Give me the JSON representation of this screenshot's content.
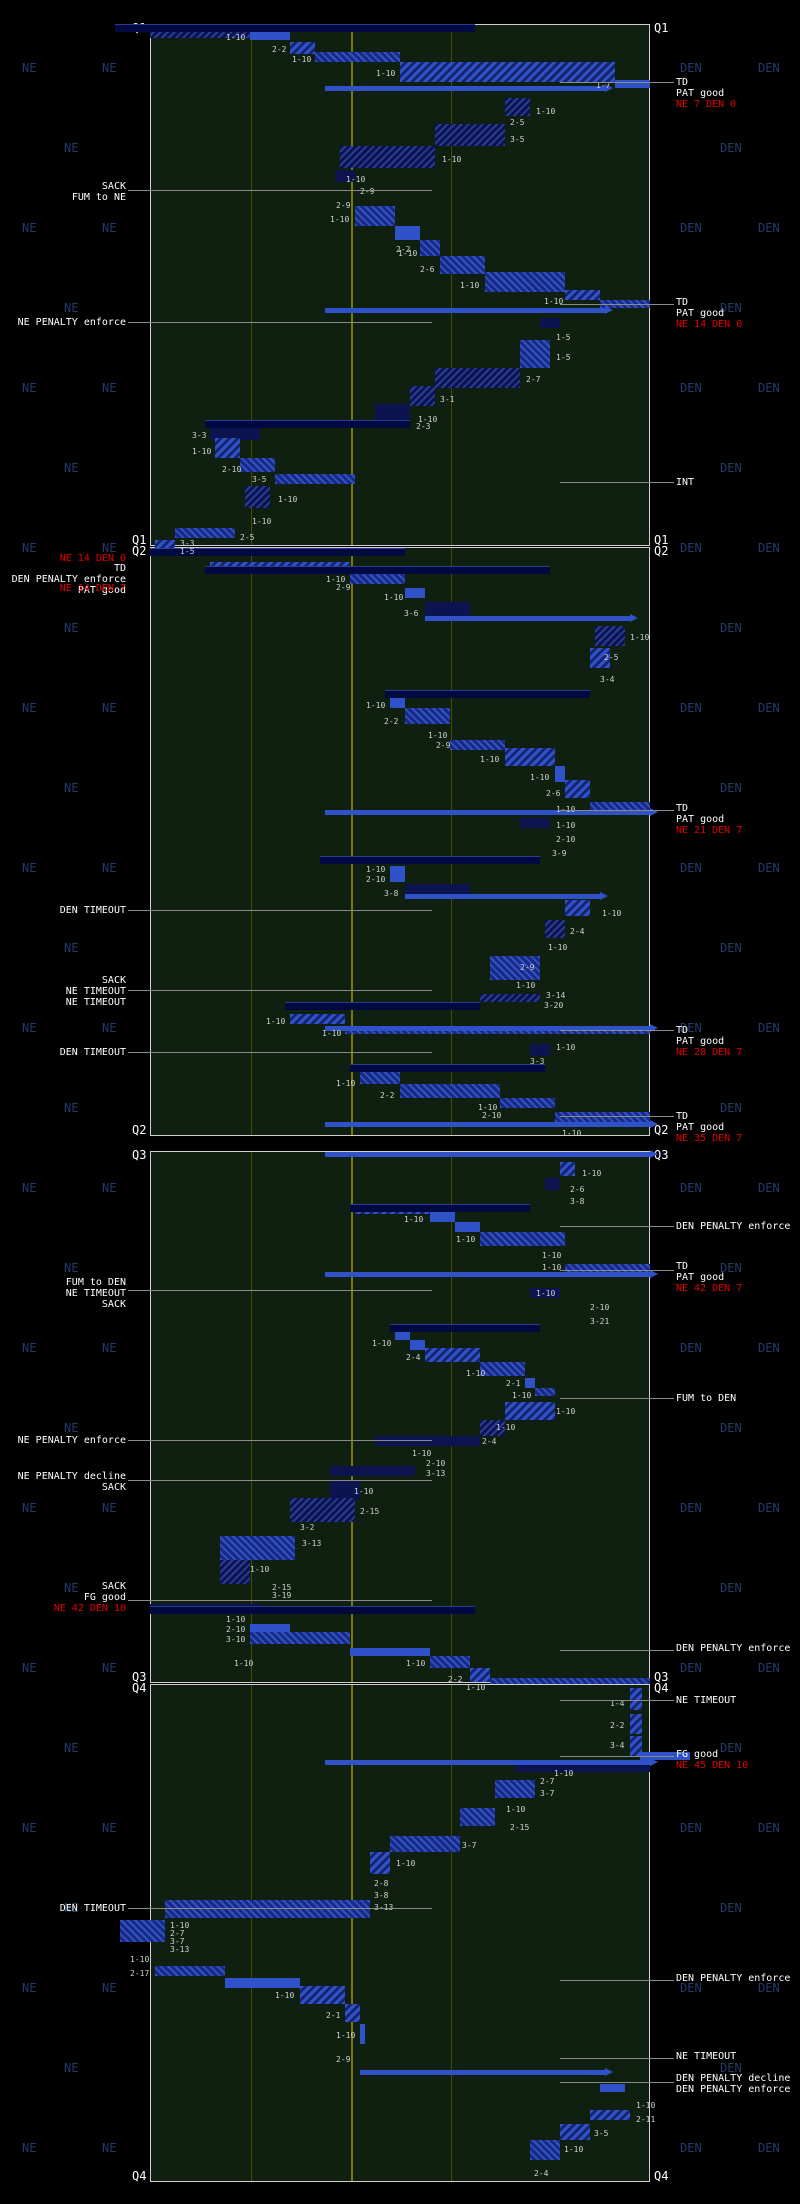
{
  "quarters": [
    {
      "id": "q1",
      "left_top": "Q1",
      "right_top": "Q1",
      "left_bottom": "Q1",
      "right_bottom": "Q1"
    },
    {
      "id": "q2",
      "left_top": "Q2",
      "right_top": "Q2",
      "left_bottom": "Q2",
      "right_bottom": "Q2"
    },
    {
      "id": "q3",
      "left_top": "Q3",
      "right_top": "Q3",
      "left_bottom": "Q3",
      "right_bottom": "Q3"
    },
    {
      "id": "q4",
      "left_top": "Q4",
      "right_top": "Q4",
      "left_bottom": "Q4",
      "right_bottom": "Q4"
    }
  ],
  "watermark": {
    "left": "NE",
    "right": "DEN"
  },
  "colors": {
    "background": "#000000",
    "field": "#102010",
    "plays": "#2f52c8",
    "drive": "#000a40",
    "score": "#e00000",
    "midfield": "#8a8a00"
  },
  "events": {
    "q1": [
      {
        "side": "right",
        "lines": [
          "TD",
          "PAT good"
        ],
        "score": "NE 7 DEN 0"
      },
      {
        "side": "left",
        "lines": [
          "SACK",
          "FUM to NE"
        ]
      },
      {
        "side": "right",
        "lines": [
          "TD",
          "PAT good"
        ],
        "score": "NE 14 DEN 0"
      },
      {
        "side": "left",
        "lines": [
          "NE PENALTY enforce"
        ]
      },
      {
        "side": "right",
        "lines": [
          "INT"
        ]
      }
    ],
    "q1q2": [
      {
        "side": "left",
        "lines": [
          "NE 14 DEN 0"
        ],
        "red": true
      },
      {
        "side": "left",
        "lines": [
          "TD",
          "DEN PENALTY enforce",
          "PAT good"
        ]
      },
      {
        "side": "left",
        "lines": [
          "NE 14 DEN 7"
        ],
        "red": true
      }
    ],
    "q2": [
      {
        "side": "right",
        "lines": [
          "TD",
          "PAT good"
        ],
        "score": "NE 21 DEN 7"
      },
      {
        "side": "left",
        "lines": [
          "DEN TIMEOUT"
        ]
      },
      {
        "side": "left",
        "lines": [
          "SACK",
          "NE TIMEOUT",
          "NE TIMEOUT"
        ]
      },
      {
        "side": "right",
        "lines": [
          "TD",
          "PAT good"
        ],
        "score": "NE 28 DEN 7"
      },
      {
        "side": "left",
        "lines": [
          "DEN TIMEOUT"
        ]
      },
      {
        "side": "right",
        "lines": [
          "TD",
          "PAT good"
        ],
        "score": "NE 35 DEN 7"
      }
    ],
    "q3": [
      {
        "side": "right",
        "lines": [
          "DEN PENALTY enforce"
        ]
      },
      {
        "side": "right",
        "lines": [
          "TD",
          "PAT good"
        ],
        "score": "NE 42 DEN 7"
      },
      {
        "side": "left",
        "lines": [
          "FUM to DEN",
          "NE TIMEOUT",
          "SACK"
        ]
      },
      {
        "side": "right",
        "lines": [
          "FUM to DEN"
        ]
      },
      {
        "side": "left",
        "lines": [
          "NE PENALTY enforce"
        ]
      },
      {
        "side": "left",
        "lines": [
          "NE PENALTY decline",
          "SACK"
        ]
      },
      {
        "side": "left",
        "lines": [
          "SACK",
          "FG good"
        ],
        "score": "NE 42 DEN 10"
      },
      {
        "side": "right",
        "lines": [
          "DEN PENALTY enforce"
        ]
      }
    ],
    "q4": [
      {
        "side": "right",
        "lines": [
          "NE TIMEOUT"
        ]
      },
      {
        "side": "right",
        "lines": [
          "FG good"
        ],
        "score": "NE 45 DEN 10"
      },
      {
        "side": "left",
        "lines": [
          "DEN TIMEOUT"
        ]
      },
      {
        "side": "right",
        "lines": [
          "DEN PENALTY enforce"
        ]
      },
      {
        "side": "right",
        "lines": [
          "NE TIMEOUT"
        ]
      },
      {
        "side": "right",
        "lines": [
          "DEN PENALTY decline",
          "DEN PENALTY enforce"
        ]
      }
    ]
  },
  "downs": {
    "q1": [
      "1-10",
      "2-2",
      "1-10",
      "1-10",
      "1-7",
      "1-10",
      "2-5",
      "3-5",
      "1-10",
      "1-10",
      "2-9",
      "2-9",
      "1-10",
      "2-2",
      "1-10",
      "2-6",
      "1-10",
      "1-10",
      "1-5",
      "1-5",
      "2-7",
      "3-1",
      "1-10",
      "2-3",
      "3-3",
      "1-10",
      "2-10",
      "3-5",
      "1-10",
      "1-10",
      "2-5",
      "3-3",
      "1-5"
    ],
    "q2": [
      "1-10",
      "2-9",
      "1-10",
      "3-6",
      "1-10",
      "2-5",
      "3-4",
      "1-10",
      "2-2",
      "1-10",
      "2-9",
      "1-10",
      "1-10",
      "2-6",
      "1-10",
      "1-10",
      "2-10",
      "3-9",
      "1-10",
      "2-10",
      "3-8",
      "1-10",
      "2-4",
      "1-10",
      "2-9",
      "1-10",
      "3-14",
      "3-20",
      "1-10",
      "1-10",
      "1-10",
      "3-3",
      "1-10",
      "2-2",
      "1-10",
      "2-10",
      "1-10"
    ],
    "q3": [
      "1-10",
      "2-6",
      "3-8",
      "1-10",
      "1-10",
      "1-10",
      "1-10",
      "1-10",
      "2-10",
      "3-21",
      "1-10",
      "2-4",
      "1-10",
      "2-1",
      "1-10",
      "1-10",
      "1-10",
      "2-4",
      "1-10",
      "2-10",
      "3-13",
      "1-10",
      "2-15",
      "3-2",
      "3-13",
      "1-10",
      "2-15",
      "3-19",
      "1-10",
      "2-10",
      "3-10",
      "1-10",
      "1-10",
      "2-2",
      "1-10"
    ],
    "q4": [
      "1-4",
      "2-2",
      "3-4",
      "1-10",
      "2-7",
      "3-7",
      "1-10",
      "2-15",
      "3-7",
      "1-10",
      "2-8",
      "3-8",
      "3-13",
      "1-10",
      "2-7",
      "3-7",
      "3-13",
      "1-10",
      "2-17",
      "1-10",
      "2-1",
      "1-10",
      "2-9",
      "1-10",
      "2-11",
      "3-5",
      "1-10",
      "2-4"
    ]
  }
}
